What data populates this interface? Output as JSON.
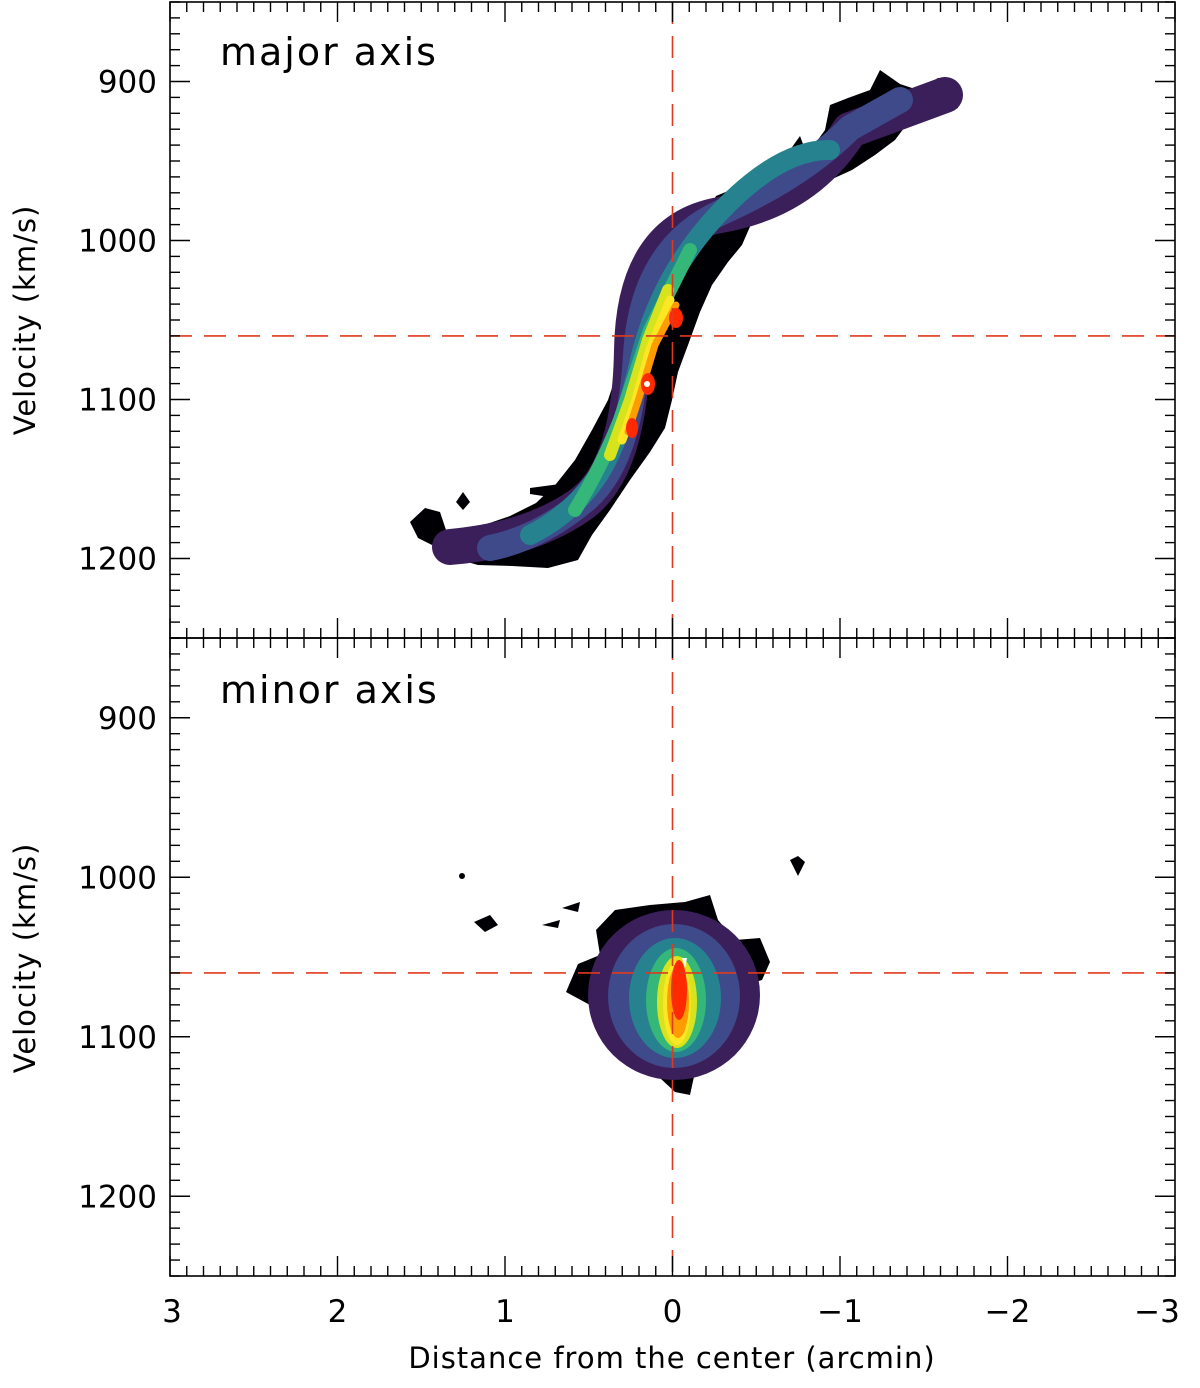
{
  "chart_data": [
    {
      "type": "contour",
      "title": "major axis",
      "xlabel": "",
      "ylabel": "Velocity (km/s)",
      "xlim": [
        3,
        -3
      ],
      "ylim": [
        1250,
        850
      ],
      "y_inverted": true,
      "x_ticks": [
        3,
        2,
        1,
        0,
        -1,
        -2,
        -3
      ],
      "y_ticks": [
        900,
        1000,
        1100,
        1200
      ],
      "y_tick_labels": [
        "900",
        "1000",
        "1100",
        "1200"
      ],
      "reference_lines": {
        "x": 0,
        "y": 1060,
        "style": "dashed",
        "color": "#e03a1e"
      },
      "colormap": [
        "#000004",
        "#3b1f5a",
        "#3e4a89",
        "#26828e",
        "#35b779",
        "#d6e31d",
        "#fde725",
        "#ff9d00",
        "#ff2a00",
        "#ffffff"
      ],
      "emission": {
        "ridge": [
          [
            1.35,
            1190
          ],
          [
            1.1,
            1190
          ],
          [
            0.8,
            1185
          ],
          [
            0.55,
            1168
          ],
          [
            0.4,
            1140
          ],
          [
            0.28,
            1110
          ],
          [
            0.18,
            1085
          ],
          [
            0.08,
            1060
          ],
          [
            -0.02,
            1040
          ],
          [
            -0.12,
            1010
          ],
          [
            -0.25,
            985
          ],
          [
            -0.5,
            970
          ],
          [
            -0.75,
            955
          ],
          [
            -0.95,
            935
          ],
          [
            -1.2,
            920
          ],
          [
            -1.45,
            910
          ],
          [
            -1.6,
            905
          ]
        ],
        "peaks": [
          [
            0.0,
            1050
          ],
          [
            0.13,
            1090
          ],
          [
            0.22,
            1120
          ]
        ],
        "peak_velocity_range": [
          1040,
          1130
        ]
      }
    },
    {
      "type": "contour",
      "title": "minor axis",
      "xlabel": "Distance from the center (arcmin)",
      "ylabel": "Velocity (km/s)",
      "xlim": [
        3,
        -3
      ],
      "ylim": [
        1250,
        850
      ],
      "y_inverted": true,
      "x_ticks": [
        3,
        2,
        1,
        0,
        -1,
        -2,
        -3
      ],
      "x_tick_labels": [
        "3",
        "2",
        "1",
        "0",
        "−1",
        "−2",
        "−3"
      ],
      "y_ticks": [
        900,
        1000,
        1100,
        1200
      ],
      "y_tick_labels": [
        "900",
        "1000",
        "1100",
        "1200"
      ],
      "reference_lines": {
        "x": 0,
        "y": 1060,
        "style": "dashed",
        "color": "#e03a1e"
      },
      "colormap": [
        "#000004",
        "#3b1f5a",
        "#3e4a89",
        "#26828e",
        "#35b779",
        "#d6e31d",
        "#fde725",
        "#ff9d00",
        "#ff2a00",
        "#ffffff"
      ],
      "emission": {
        "center": [
          -0.03,
          1065
        ],
        "x_extent": [
          0.6,
          -0.68
        ],
        "v_extent": [
          1015,
          1135
        ],
        "peak_velocity_range": [
          1050,
          1095
        ]
      }
    }
  ]
}
